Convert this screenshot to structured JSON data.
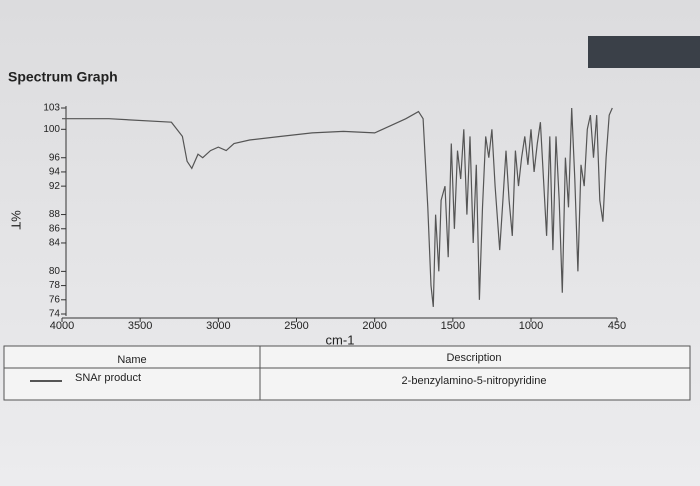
{
  "chart_data": {
    "type": "line",
    "title": "Spectrum Graph",
    "y_label": "%T",
    "x_label": "cm-1",
    "xlim": [
      4000,
      450
    ],
    "ylim": [
      74,
      103
    ],
    "xticks": [
      4000,
      3500,
      3000,
      2500,
      2000,
      1500,
      1000,
      450
    ],
    "yticks": [
      103,
      100,
      96,
      94,
      92,
      88,
      86,
      84,
      80,
      78,
      76,
      74
    ],
    "legend_headers": [
      "Name",
      "Description"
    ],
    "series": [
      {
        "name": "SNAr product",
        "description": "2-benzylamino-5-nitropyridine",
        "color": "#555555",
        "x": [
          4000,
          3700,
          3300,
          3230,
          3200,
          3170,
          3130,
          3100,
          3050,
          3000,
          2950,
          2900,
          2800,
          2600,
          2400,
          2200,
          2000,
          1900,
          1800,
          1720,
          1690,
          1660,
          1640,
          1625,
          1610,
          1590,
          1575,
          1550,
          1530,
          1510,
          1490,
          1470,
          1450,
          1430,
          1410,
          1390,
          1370,
          1350,
          1330,
          1310,
          1290,
          1270,
          1250,
          1230,
          1200,
          1180,
          1160,
          1140,
          1120,
          1100,
          1080,
          1060,
          1040,
          1020,
          1000,
          980,
          960,
          940,
          920,
          900,
          880,
          860,
          840,
          820,
          800,
          780,
          760,
          740,
          720,
          700,
          680,
          660,
          640,
          620,
          600,
          580,
          560,
          540,
          520,
          500,
          480
        ],
        "values": [
          101.5,
          101.5,
          101,
          99,
          95.5,
          94.5,
          96.5,
          96,
          97,
          97.5,
          97,
          98,
          98.5,
          99,
          99.5,
          99.7,
          99.5,
          100.5,
          101.5,
          102.5,
          101.5,
          89,
          78,
          75,
          88,
          80,
          90,
          92,
          82,
          98,
          86,
          97,
          93,
          100,
          88,
          99,
          84,
          95,
          76,
          89,
          99,
          96,
          100,
          92,
          83,
          90,
          97,
          90,
          85,
          97,
          92,
          96,
          99,
          95,
          100,
          94,
          98,
          101,
          93,
          85,
          99,
          83,
          99,
          90,
          77,
          96,
          89,
          103,
          93,
          80,
          95,
          92,
          100,
          102,
          96,
          102,
          90,
          87,
          96,
          102,
          103
        ]
      }
    ]
  }
}
